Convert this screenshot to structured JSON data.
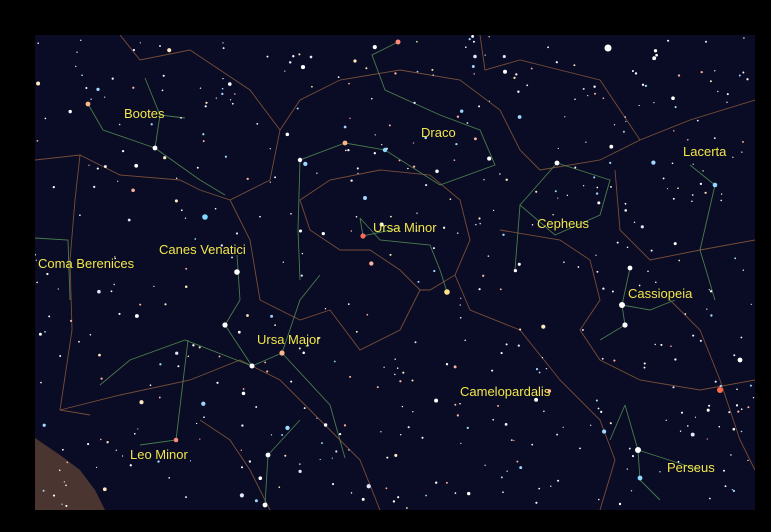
{
  "map": {
    "constellations": [
      "Bootes",
      "Draco",
      "Lacerta",
      "Ursa Minor",
      "Cepheus",
      "Coma Berenices",
      "Canes Venatici",
      "Cassiopeia",
      "Ursa Major",
      "Camelopardalis",
      "Leo Minor",
      "Perseus"
    ]
  }
}
